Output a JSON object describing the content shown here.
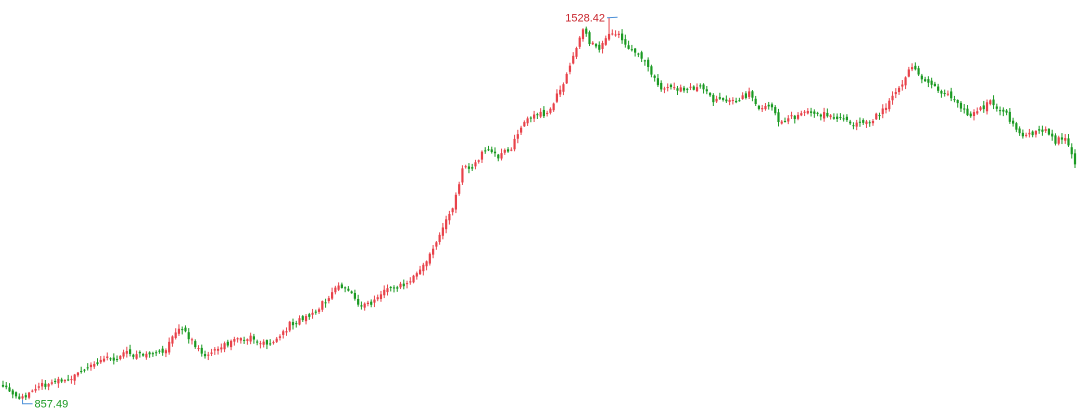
{
  "chart_data": {
    "type": "candlestick",
    "title": "",
    "xlabel": "",
    "ylabel": "",
    "ylim": [
      850,
      1535
    ],
    "grid": false,
    "legend": "none",
    "colors": {
      "up": "#e8424a",
      "down": "#1a9a22",
      "annotation_high": "#c8242c",
      "annotation_low": "#1a9a22",
      "leader": "#4a8fd8"
    },
    "annotations": {
      "max": {
        "label": "1528.42",
        "value": 1528.42
      },
      "min": {
        "label": "857.49",
        "value": 857.49
      }
    },
    "keypoints": [
      [
        0,
        880
      ],
      [
        4,
        862
      ],
      [
        6,
        857.49
      ],
      [
        10,
        880
      ],
      [
        14,
        885
      ],
      [
        20,
        895
      ],
      [
        27,
        915
      ],
      [
        32,
        935
      ],
      [
        34,
        930
      ],
      [
        38,
        938
      ],
      [
        44,
        935
      ],
      [
        50,
        945
      ],
      [
        53,
        975
      ],
      [
        55,
        980
      ],
      [
        59,
        955
      ],
      [
        62,
        935
      ],
      [
        64,
        940
      ],
      [
        68,
        955
      ],
      [
        72,
        965
      ],
      [
        76,
        966
      ],
      [
        80,
        956
      ],
      [
        84,
        960
      ],
      [
        88,
        990
      ],
      [
        92,
        998
      ],
      [
        96,
        1012
      ],
      [
        100,
        1040
      ],
      [
        103,
        1060
      ],
      [
        106,
        1050
      ],
      [
        110,
        1022
      ],
      [
        114,
        1030
      ],
      [
        118,
        1052
      ],
      [
        122,
        1058
      ],
      [
        126,
        1072
      ],
      [
        130,
        1100
      ],
      [
        134,
        1150
      ],
      [
        138,
        1190
      ],
      [
        141,
        1260
      ],
      [
        144,
        1268
      ],
      [
        148,
        1295
      ],
      [
        152,
        1285
      ],
      [
        156,
        1300
      ],
      [
        160,
        1345
      ],
      [
        164,
        1362
      ],
      [
        167,
        1358
      ],
      [
        170,
        1395
      ],
      [
        173,
        1425
      ],
      [
        176,
        1480
      ],
      [
        178,
        1505
      ],
      [
        180,
        1486
      ],
      [
        183,
        1468
      ],
      [
        186,
        1503
      ],
      [
        189,
        1496
      ],
      [
        193,
        1468
      ],
      [
        196,
        1460
      ],
      [
        199,
        1430
      ],
      [
        202,
        1405
      ],
      [
        206,
        1405
      ],
      [
        210,
        1400
      ],
      [
        214,
        1410
      ],
      [
        218,
        1382
      ],
      [
        222,
        1385
      ],
      [
        226,
        1385
      ],
      [
        229,
        1395
      ],
      [
        232,
        1365
      ],
      [
        235,
        1375
      ],
      [
        238,
        1350
      ],
      [
        242,
        1352
      ],
      [
        246,
        1365
      ],
      [
        250,
        1360
      ],
      [
        254,
        1356
      ],
      [
        258,
        1350
      ],
      [
        262,
        1340
      ],
      [
        266,
        1345
      ],
      [
        270,
        1365
      ],
      [
        273,
        1395
      ],
      [
        276,
        1415
      ],
      [
        278,
        1442
      ],
      [
        281,
        1430
      ],
      [
        285,
        1410
      ],
      [
        289,
        1395
      ],
      [
        293,
        1380
      ],
      [
        296,
        1358
      ],
      [
        299,
        1365
      ],
      [
        303,
        1380
      ],
      [
        307,
        1365
      ],
      [
        311,
        1332
      ],
      [
        314,
        1318
      ],
      [
        317,
        1328
      ],
      [
        320,
        1332
      ],
      [
        323,
        1310
      ],
      [
        326,
        1322
      ],
      [
        329,
        1275
      ]
    ]
  }
}
